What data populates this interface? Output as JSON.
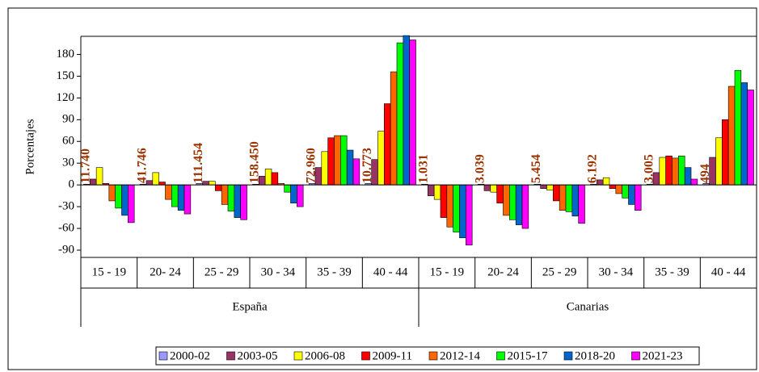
{
  "chart_data": {
    "type": "bar",
    "y_label": "Porcentajes",
    "categories": [
      "15 - 19",
      "20- 24",
      "25 - 29",
      "30 - 34",
      "35 - 39",
      "40 - 44",
      "15 - 19",
      "20- 24",
      "25 - 29",
      "30 - 34",
      "35 - 39",
      "40 - 44"
    ],
    "category_groups": [
      "España",
      "Canarias"
    ],
    "annotations": [
      "11.740",
      "41.746",
      "111.454",
      "158.450",
      "72.960",
      "10.773",
      "1.031",
      "3.039",
      "5.454",
      "6.192",
      "3.005",
      "494"
    ],
    "series": [
      {
        "name": "2000-02",
        "color": "#9999ff",
        "values": [
          1,
          1,
          2,
          1,
          2,
          2,
          1,
          1,
          1,
          1,
          1,
          2
        ]
      },
      {
        "name": "2003-05",
        "color": "#993366",
        "values": [
          8,
          6,
          5,
          12,
          24,
          35,
          -15,
          -8,
          -5,
          7,
          17,
          38
        ]
      },
      {
        "name": "2006-08",
        "color": "#ffff00",
        "values": [
          24,
          17,
          5,
          22,
          46,
          74,
          -20,
          -10,
          -7,
          10,
          38,
          65
        ]
      },
      {
        "name": "2009-11",
        "color": "#ff0000",
        "values": [
          2,
          4,
          -8,
          17,
          65,
          112,
          -45,
          -25,
          -22,
          -5,
          40,
          90
        ]
      },
      {
        "name": "2012-14",
        "color": "#ff6600",
        "values": [
          -22,
          -20,
          -27,
          2,
          68,
          156,
          -58,
          -42,
          -35,
          -12,
          37,
          136
        ]
      },
      {
        "name": "2015-17",
        "color": "#00ff00",
        "values": [
          -32,
          -30,
          -36,
          -10,
          68,
          196,
          -65,
          -48,
          -37,
          -18,
          40,
          158
        ]
      },
      {
        "name": "2018-20",
        "color": "#0066cc",
        "values": [
          -42,
          -35,
          -45,
          -25,
          48,
          206,
          -73,
          -55,
          -43,
          -27,
          24,
          141
        ]
      },
      {
        "name": "2021-23",
        "color": "#ff00ff",
        "values": [
          -52,
          -40,
          -48,
          -30,
          36,
          200,
          -83,
          -60,
          -53,
          -35,
          8,
          131
        ]
      }
    ],
    "ylim": [
      -100,
      205
    ],
    "yticks": [
      -90,
      -60,
      -30,
      0,
      30,
      60,
      90,
      120,
      150,
      180
    ]
  }
}
